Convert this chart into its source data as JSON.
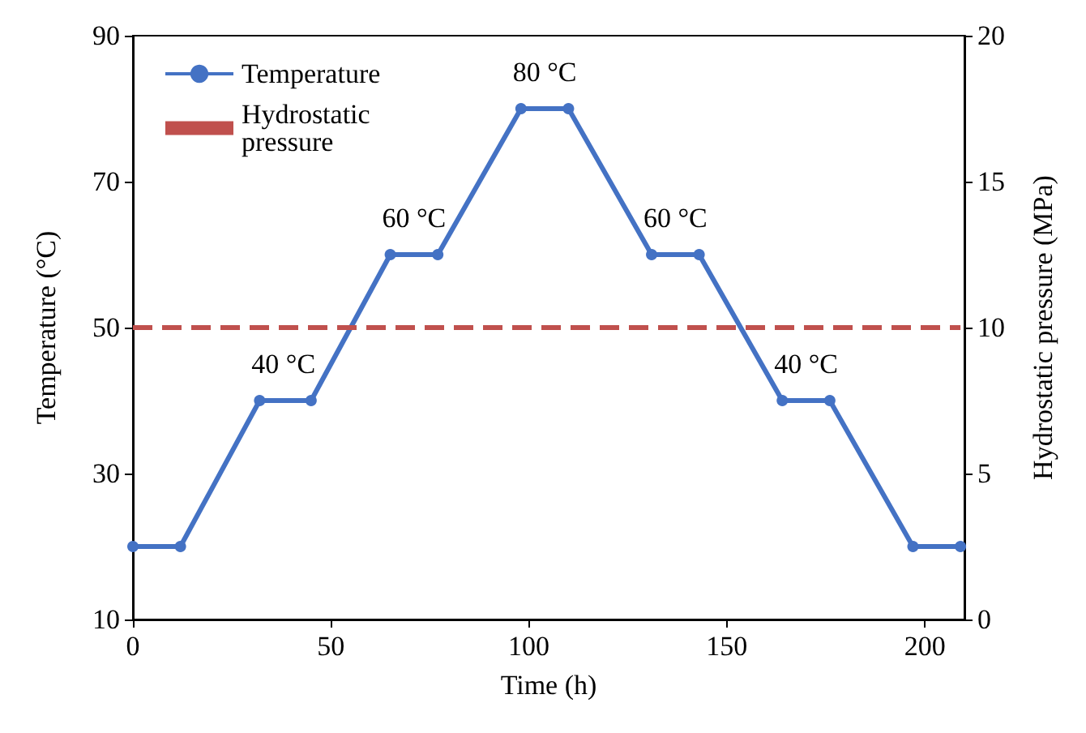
{
  "chart_data": {
    "type": "line",
    "xlabel": "Time (h)",
    "ylabel": "Temperature (°C)",
    "y2label": "Hydrostatic pressure (MPa)",
    "x": [
      0,
      12,
      32,
      45,
      65,
      77,
      98,
      110,
      131,
      143,
      164,
      176,
      197,
      209
    ],
    "series": [
      {
        "name": "Temperature",
        "color": "#4472c4",
        "marker": "circle",
        "line_style": "solid",
        "values": [
          20,
          20,
          40,
          40,
          60,
          60,
          80,
          80,
          60,
          60,
          40,
          40,
          20,
          20
        ]
      },
      {
        "name": "Hydrostatic pressure",
        "color": "#c0504d",
        "marker": "none",
        "line_style": "dashed",
        "axis": "y2",
        "x": [
          0,
          209
        ],
        "values": [
          10,
          10
        ]
      }
    ],
    "xlim": [
      0,
      210
    ],
    "xticks": [
      0,
      50,
      100,
      150,
      200
    ],
    "ylim": [
      10,
      90
    ],
    "yticks": [
      10,
      30,
      50,
      70,
      90
    ],
    "y2lim": [
      0,
      20
    ],
    "y2ticks": [
      0,
      5,
      10,
      15,
      20
    ],
    "annotations": [
      {
        "text": "40 °C",
        "x": 38,
        "y": 40
      },
      {
        "text": "60 °C",
        "x": 71,
        "y": 60
      },
      {
        "text": "80 °C",
        "x": 104,
        "y": 80
      },
      {
        "text": "60 °C",
        "x": 137,
        "y": 60
      },
      {
        "text": "40 °C",
        "x": 170,
        "y": 40
      }
    ],
    "legend": "top left",
    "grid": false
  }
}
